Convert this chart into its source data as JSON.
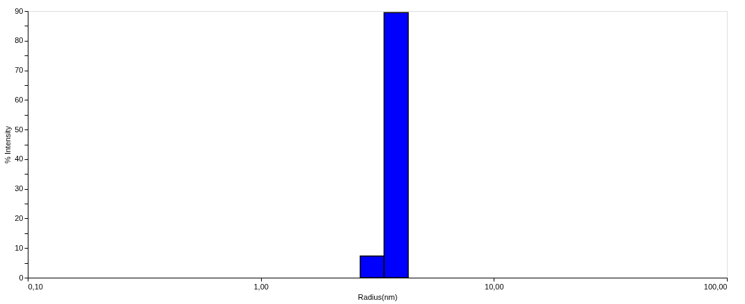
{
  "chart_data": {
    "type": "histogram",
    "xlabel": "Radius(nm)",
    "ylabel": "% Intensity",
    "bins": [
      2.67,
      3.38,
      4.29
    ],
    "values": [
      7.3,
      89.5
    ],
    "color": "#0000ff",
    "log": "x",
    "grid": false,
    "xlim": [
      0.1,
      100
    ],
    "xticks": [
      {
        "value": 0.1,
        "label": "0,10"
      },
      {
        "value": 1,
        "label": "1,00"
      },
      {
        "value": 10,
        "label": "10,00"
      },
      {
        "value": 100,
        "label": "100,00"
      }
    ],
    "ylim": [
      0,
      90
    ],
    "yticks": [
      0,
      {
        "value": 5,
        "label": null
      },
      10,
      {
        "value": 15,
        "label": null
      },
      20,
      {
        "value": 25,
        "label": null
      },
      30,
      {
        "value": 35,
        "label": null
      },
      40,
      {
        "value": 45,
        "label": null
      },
      50,
      {
        "value": 55,
        "label": null
      },
      60,
      {
        "value": 65,
        "label": null
      },
      70,
      {
        "value": 75,
        "label": null
      },
      80,
      {
        "value": 85,
        "label": null
      },
      90
    ]
  }
}
